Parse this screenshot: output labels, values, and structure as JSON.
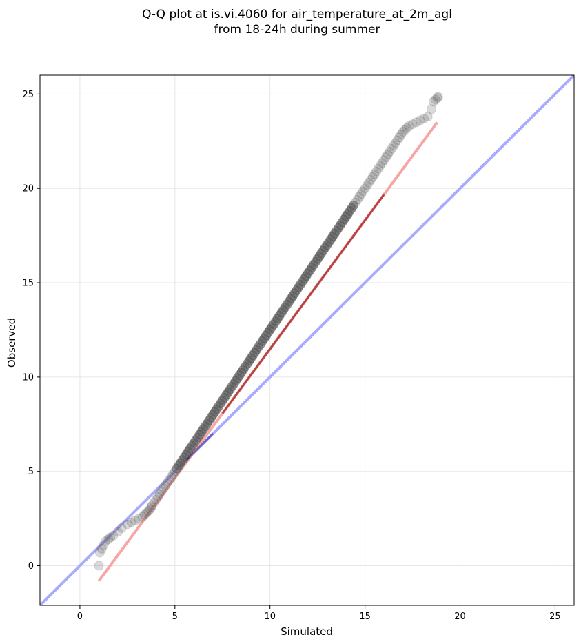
{
  "chart_data": {
    "type": "scatter",
    "title": "Q-Q plot at is.vi.4060 for air_temperature_at_2m_agl",
    "subtitle": "from 18-24h during summer",
    "xlabel": "Simulated",
    "ylabel": "Observed",
    "xlim": [
      -2.1,
      26
    ],
    "ylim": [
      -2.1,
      26
    ],
    "xticks": [
      0,
      5,
      10,
      15,
      20,
      25
    ],
    "yticks": [
      0,
      5,
      10,
      15,
      20,
      25
    ],
    "tick_labels_x": [
      "0",
      "5",
      "10",
      "15",
      "20",
      "25"
    ],
    "tick_labels_y": [
      "0",
      "5",
      "10",
      "15",
      "20",
      "25"
    ],
    "grid": true,
    "colors": {
      "points": "#555555",
      "identity_line": "#aaaaff",
      "fit_line": "#f7a6a6",
      "dense_fit": "#8b0000",
      "dense_identity": "#1a1a8a"
    },
    "reference_lines": [
      {
        "role": "identity",
        "x": [
          -2.1,
          26
        ],
        "y": [
          -2.1,
          26
        ]
      },
      {
        "role": "fit",
        "x": [
          1.0,
          18.8
        ],
        "y": [
          -0.8,
          23.5
        ]
      }
    ],
    "points_x": [
      1.0,
      1.05,
      1.15,
      1.25,
      1.35,
      1.5,
      1.6,
      1.75,
      2.0,
      2.2,
      2.5,
      2.7,
      2.9,
      3.1,
      3.3,
      3.4,
      3.5,
      3.6,
      3.7,
      3.75,
      3.8,
      3.9,
      4.0,
      4.1,
      4.2,
      4.3,
      4.4,
      4.5,
      4.6,
      4.7,
      4.8,
      4.9,
      5.0,
      5.1,
      5.2,
      5.3,
      5.4,
      5.5,
      5.6,
      5.7,
      5.8,
      5.9,
      6.0,
      6.1,
      6.2,
      6.3,
      6.4,
      6.5,
      6.6,
      6.7,
      6.8,
      6.9,
      7.0,
      7.1,
      7.2,
      7.3,
      7.4,
      7.5,
      7.6,
      7.7,
      7.8,
      7.9,
      8.0,
      8.1,
      8.2,
      8.3,
      8.4,
      8.5,
      8.6,
      8.7,
      8.8,
      8.9,
      9.0,
      9.1,
      9.2,
      9.3,
      9.4,
      9.5,
      9.6,
      9.7,
      9.8,
      9.9,
      10.0,
      10.1,
      10.2,
      10.3,
      10.4,
      10.5,
      10.6,
      10.7,
      10.8,
      10.9,
      11.0,
      11.1,
      11.2,
      11.3,
      11.4,
      11.5,
      11.6,
      11.7,
      11.8,
      11.9,
      12.0,
      12.1,
      12.2,
      12.3,
      12.4,
      12.5,
      12.6,
      12.7,
      12.8,
      12.9,
      13.0,
      13.1,
      13.2,
      13.3,
      13.4,
      13.5,
      13.6,
      13.7,
      13.8,
      13.9,
      14.0,
      14.1,
      14.2,
      14.3,
      14.4,
      14.5,
      14.6,
      14.7,
      14.8,
      14.9,
      15.0,
      15.1,
      15.2,
      15.3,
      15.4,
      15.5,
      15.6,
      15.7,
      15.8,
      15.9,
      16.0,
      16.1,
      16.2,
      16.3,
      16.4,
      16.5,
      16.6,
      16.7,
      16.8,
      16.9,
      17.0,
      17.1,
      17.2,
      17.3,
      17.5,
      17.7,
      17.9,
      18.1,
      18.3,
      18.5,
      18.6,
      18.7,
      18.8,
      18.85
    ],
    "points_y": [
      0.0,
      0.7,
      0.9,
      1.1,
      1.3,
      1.4,
      1.5,
      1.6,
      1.8,
      2.0,
      2.2,
      2.3,
      2.4,
      2.5,
      2.6,
      2.7,
      2.8,
      2.9,
      3.0,
      3.1,
      3.2,
      3.35,
      3.5,
      3.65,
      3.8,
      3.95,
      4.1,
      4.25,
      4.4,
      4.55,
      4.7,
      4.85,
      5.0,
      5.15,
      5.3,
      5.45,
      5.6,
      5.75,
      5.9,
      6.05,
      6.2,
      6.35,
      6.5,
      6.65,
      6.8,
      6.95,
      7.1,
      7.25,
      7.4,
      7.55,
      7.7,
      7.85,
      8.0,
      8.15,
      8.3,
      8.45,
      8.6,
      8.75,
      8.9,
      9.05,
      9.2,
      9.35,
      9.5,
      9.65,
      9.8,
      9.95,
      10.1,
      10.25,
      10.4,
      10.55,
      10.7,
      10.85,
      11.0,
      11.15,
      11.3,
      11.45,
      11.6,
      11.75,
      11.9,
      12.05,
      12.2,
      12.35,
      12.5,
      12.65,
      12.8,
      12.95,
      13.1,
      13.25,
      13.4,
      13.55,
      13.7,
      13.85,
      14.0,
      14.15,
      14.3,
      14.45,
      14.6,
      14.75,
      14.9,
      15.05,
      15.2,
      15.35,
      15.5,
      15.65,
      15.8,
      15.95,
      16.1,
      16.25,
      16.4,
      16.55,
      16.7,
      16.85,
      17.0,
      17.15,
      17.3,
      17.45,
      17.6,
      17.75,
      17.9,
      18.05,
      18.2,
      18.35,
      18.5,
      18.65,
      18.8,
      18.95,
      19.1,
      19.25,
      19.4,
      19.55,
      19.7,
      19.85,
      20.0,
      20.15,
      20.3,
      20.45,
      20.6,
      20.75,
      20.9,
      21.05,
      21.2,
      21.35,
      21.5,
      21.65,
      21.8,
      21.95,
      22.1,
      22.25,
      22.4,
      22.55,
      22.7,
      22.85,
      23.0,
      23.1,
      23.2,
      23.3,
      23.4,
      23.5,
      23.6,
      23.7,
      23.8,
      24.2,
      24.6,
      24.7,
      24.8,
      24.85
    ]
  }
}
